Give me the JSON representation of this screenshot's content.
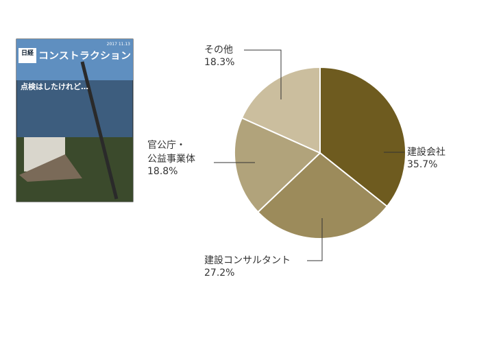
{
  "cover": {
    "masthead": "日経",
    "title": "コンストラクション",
    "date": "2017 11.13",
    "headline": "点検はしたけれど…"
  },
  "chart_data": {
    "type": "pie",
    "categories": [
      "建設会社",
      "建設コンサルタント",
      "官公庁・\n公益事業体",
      "その他"
    ],
    "values": [
      35.7,
      27.2,
      18.8,
      18.3
    ],
    "value_labels": [
      "35.7%",
      "27.2%",
      "18.8%",
      "18.3%"
    ],
    "colors": [
      "#6e5b1f",
      "#9c8b5b",
      "#b1a37b",
      "#cbbe9e"
    ]
  }
}
